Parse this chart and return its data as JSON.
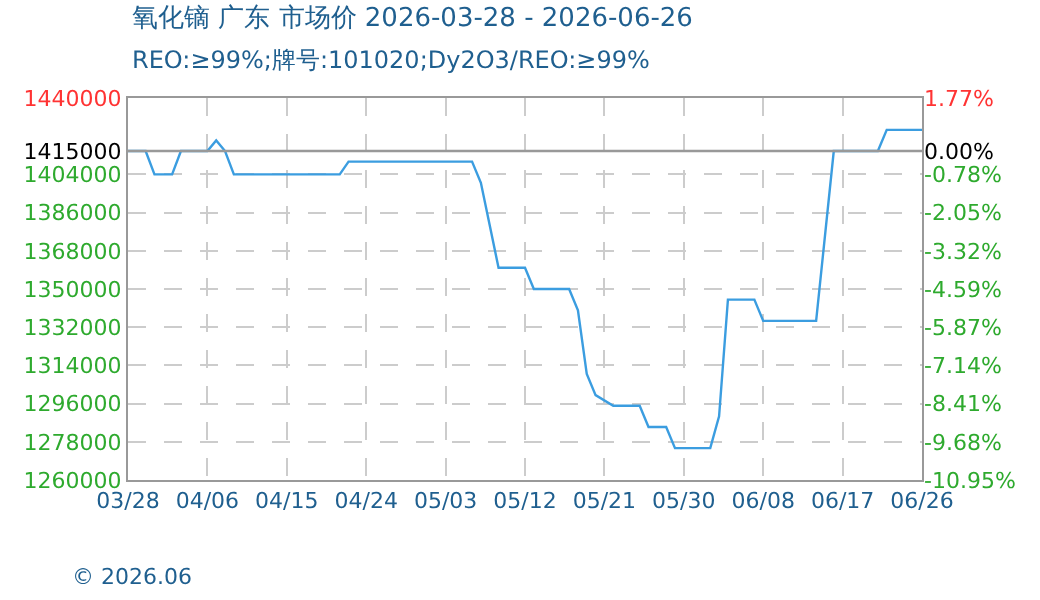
{
  "chart_data": {
    "type": "line",
    "title": "氧化镝 广东 市场价 2026-03-28 - 2026-06-26",
    "subtitle": "REO:≥99%;牌号:101020;Dy2O3/REO:≥99%",
    "x": [
      "2026-03-28",
      "2026-03-30",
      "2026-03-31",
      "2026-04-02",
      "2026-04-03",
      "2026-04-06",
      "2026-04-07",
      "2026-04-08",
      "2026-04-09",
      "2026-04-21",
      "2026-04-22",
      "2026-05-06",
      "2026-05-07",
      "2026-05-08",
      "2026-05-09",
      "2026-05-12",
      "2026-05-13",
      "2026-05-17",
      "2026-05-18",
      "2026-05-19",
      "2026-05-20",
      "2026-05-22",
      "2026-05-25",
      "2026-05-26",
      "2026-05-28",
      "2026-05-29",
      "2026-06-02",
      "2026-06-03",
      "2026-06-04",
      "2026-06-07",
      "2026-06-08",
      "2026-06-14",
      "2026-06-16",
      "2026-06-21",
      "2026-06-22",
      "2026-06-26"
    ],
    "series": [
      {
        "color": "#3b9de0",
        "values": [
          1415000,
          1415000,
          1404000,
          1404000,
          1415000,
          1415000,
          1420000,
          1415000,
          1404000,
          1404000,
          1410000,
          1410000,
          1400000,
          1380000,
          1360000,
          1360000,
          1350000,
          1350000,
          1340000,
          1310000,
          1300000,
          1295000,
          1295000,
          1285000,
          1285000,
          1275000,
          1275000,
          1290000,
          1345000,
          1345000,
          1335000,
          1335000,
          1415000,
          1415000,
          1425000,
          1425000
        ]
      }
    ],
    "xlim": [
      "2026-03-28",
      "2026-06-26"
    ],
    "xticks": [
      {
        "value": "2026-03-28",
        "label": "03/28"
      },
      {
        "value": "2026-04-06",
        "label": "04/06"
      },
      {
        "value": "2026-04-15",
        "label": "04/15"
      },
      {
        "value": "2026-04-24",
        "label": "04/24"
      },
      {
        "value": "2026-05-03",
        "label": "05/03"
      },
      {
        "value": "2026-05-12",
        "label": "05/12"
      },
      {
        "value": "2026-05-21",
        "label": "05/21"
      },
      {
        "value": "2026-05-30",
        "label": "05/30"
      },
      {
        "value": "2026-06-08",
        "label": "06/08"
      },
      {
        "value": "2026-06-17",
        "label": "06/17"
      },
      {
        "value": "2026-06-26",
        "label": "06/26"
      }
    ],
    "ylim": [
      1260000,
      1440000
    ],
    "yticks": [
      1260000,
      1278000,
      1296000,
      1314000,
      1332000,
      1350000,
      1368000,
      1386000,
      1404000,
      1415000,
      1440000
    ],
    "y2lim": [
      -10.95,
      1.77
    ],
    "y2ticks": [
      {
        "value": -10.95,
        "label": "-10.95%"
      },
      {
        "value": -9.68,
        "label": "-9.68%"
      },
      {
        "value": -8.41,
        "label": "-8.41%"
      },
      {
        "value": -7.14,
        "label": "-7.14%"
      },
      {
        "value": -5.87,
        "label": "-5.87%"
      },
      {
        "value": -4.59,
        "label": "-4.59%"
      },
      {
        "value": -3.32,
        "label": "-3.32%"
      },
      {
        "value": -2.05,
        "label": "-2.05%"
      },
      {
        "value": -0.78,
        "label": "-0.78%"
      },
      {
        "value": 0,
        "label": "0.00%"
      },
      {
        "value": 1.77,
        "label": "1.77%"
      }
    ],
    "ref_lines": [
      {
        "axis": "y",
        "value": 1415000,
        "color": "#999999"
      }
    ],
    "annotations": [
      "© 2026.06"
    ],
    "grid": true,
    "marker": "none",
    "line_style": "solid"
  }
}
